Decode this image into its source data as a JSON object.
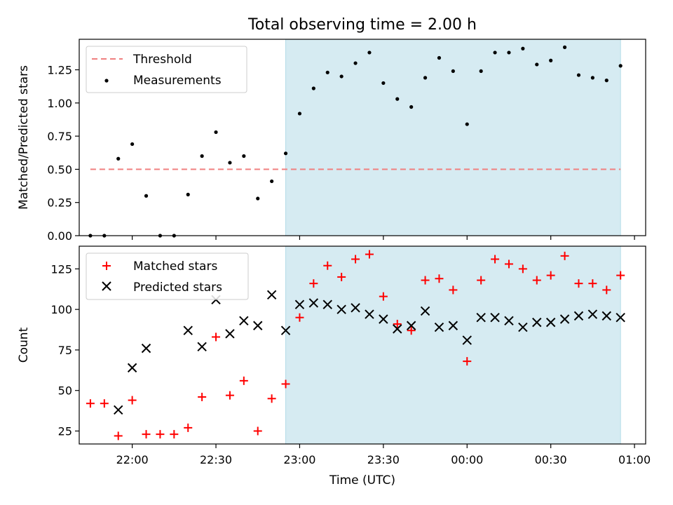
{
  "chart_data": [
    {
      "type": "scatter",
      "title": "Total observing time = 2.00 h",
      "xlabel": "",
      "ylabel": "Matched/Predicted stars",
      "ylim": [
        0,
        1.48
      ],
      "yticks": [
        0,
        0.25,
        0.5,
        0.75,
        1.0,
        1.25
      ],
      "ytick_labels": [
        "0.00",
        "0.25",
        "0.50",
        "0.75",
        "1.00",
        "1.25"
      ],
      "xlim": [
        "21:41",
        "01:04"
      ],
      "shaded_span": [
        "22:55",
        "00:55"
      ],
      "shade_color": "#add8e6",
      "threshold": {
        "name": "Threshold",
        "value": 0.5,
        "x_range": [
          "21:45",
          "00:55"
        ],
        "color": "#f08080",
        "style": "dashed"
      },
      "legend_position": "upper-left",
      "series": [
        {
          "name": "Measurements",
          "color": "#000000",
          "marker": "dot",
          "x": [
            "21:45",
            "21:50",
            "21:55",
            "22:00",
            "22:05",
            "22:10",
            "22:15",
            "22:20",
            "22:25",
            "22:30",
            "22:35",
            "22:40",
            "22:45",
            "22:50",
            "22:55",
            "23:00",
            "23:05",
            "23:10",
            "23:15",
            "23:20",
            "23:25",
            "23:30",
            "23:35",
            "23:40",
            "23:45",
            "23:50",
            "23:55",
            "00:00",
            "00:05",
            "00:10",
            "00:15",
            "00:20",
            "00:25",
            "00:30",
            "00:35",
            "00:40",
            "00:45",
            "00:50",
            "00:55"
          ],
          "y": [
            0.0,
            0.0,
            0.58,
            0.69,
            0.3,
            0.0,
            0.0,
            0.31,
            0.6,
            0.78,
            0.55,
            0.6,
            0.28,
            0.41,
            0.62,
            0.92,
            1.11,
            1.23,
            1.2,
            1.3,
            1.38,
            1.15,
            1.03,
            0.97,
            1.19,
            1.34,
            1.24,
            0.84,
            1.24,
            1.38,
            1.38,
            1.41,
            1.29,
            1.32,
            1.42,
            1.21,
            1.19,
            1.17,
            1.28
          ]
        }
      ]
    },
    {
      "type": "scatter",
      "title": "",
      "xlabel": "Time (UTC)",
      "ylabel": "Count",
      "ylim": [
        17,
        139
      ],
      "yticks": [
        25,
        50,
        75,
        100,
        125
      ],
      "ytick_labels": [
        "25",
        "50",
        "75",
        "100",
        "125"
      ],
      "xlim": [
        "21:41",
        "01:04"
      ],
      "xticks": [
        "22:00",
        "22:30",
        "23:00",
        "23:30",
        "00:00",
        "00:30",
        "01:00"
      ],
      "xtick_labels": [
        "22:00",
        "22:30",
        "23:00",
        "23:30",
        "00:00",
        "00:30",
        "01:00"
      ],
      "shaded_span": [
        "22:55",
        "00:55"
      ],
      "shade_color": "#add8e6",
      "legend_position": "upper-left",
      "series": [
        {
          "name": "Matched stars",
          "color": "#ff0000",
          "marker": "plus",
          "x": [
            "21:45",
            "21:50",
            "21:55",
            "22:00",
            "22:05",
            "22:10",
            "22:15",
            "22:20",
            "22:25",
            "22:30",
            "22:35",
            "22:40",
            "22:45",
            "22:50",
            "22:55",
            "23:00",
            "23:05",
            "23:10",
            "23:15",
            "23:20",
            "23:25",
            "23:30",
            "23:35",
            "23:40",
            "23:45",
            "23:50",
            "23:55",
            "00:00",
            "00:05",
            "00:10",
            "00:15",
            "00:20",
            "00:25",
            "00:30",
            "00:35",
            "00:40",
            "00:45",
            "00:50",
            "00:55"
          ],
          "y": [
            42,
            42,
            22,
            44,
            23,
            23,
            23,
            27,
            46,
            83,
            47,
            56,
            25,
            45,
            54,
            95,
            116,
            127,
            120,
            131,
            134,
            108,
            91,
            87,
            118,
            119,
            112,
            68,
            118,
            131,
            128,
            125,
            118,
            121,
            133,
            116,
            116,
            112,
            121
          ]
        },
        {
          "name": "Predicted stars",
          "color": "#000000",
          "marker": "x",
          "x": [
            "21:55",
            "22:00",
            "22:05",
            "22:20",
            "22:25",
            "22:30",
            "22:35",
            "22:40",
            "22:45",
            "22:50",
            "22:55",
            "23:00",
            "23:05",
            "23:10",
            "23:15",
            "23:20",
            "23:25",
            "23:30",
            "23:35",
            "23:40",
            "23:45",
            "23:50",
            "23:55",
            "00:00",
            "00:05",
            "00:10",
            "00:15",
            "00:20",
            "00:25",
            "00:30",
            "00:35",
            "00:40",
            "00:45",
            "00:50",
            "00:55"
          ],
          "y": [
            38,
            64,
            76,
            87,
            77,
            106,
            85,
            93,
            90,
            109,
            87,
            103,
            104,
            103,
            100,
            101,
            97,
            94,
            88,
            90,
            99,
            89,
            90,
            81,
            95,
            95,
            93,
            89,
            92,
            92,
            94,
            96,
            97,
            96,
            95
          ]
        }
      ]
    }
  ]
}
